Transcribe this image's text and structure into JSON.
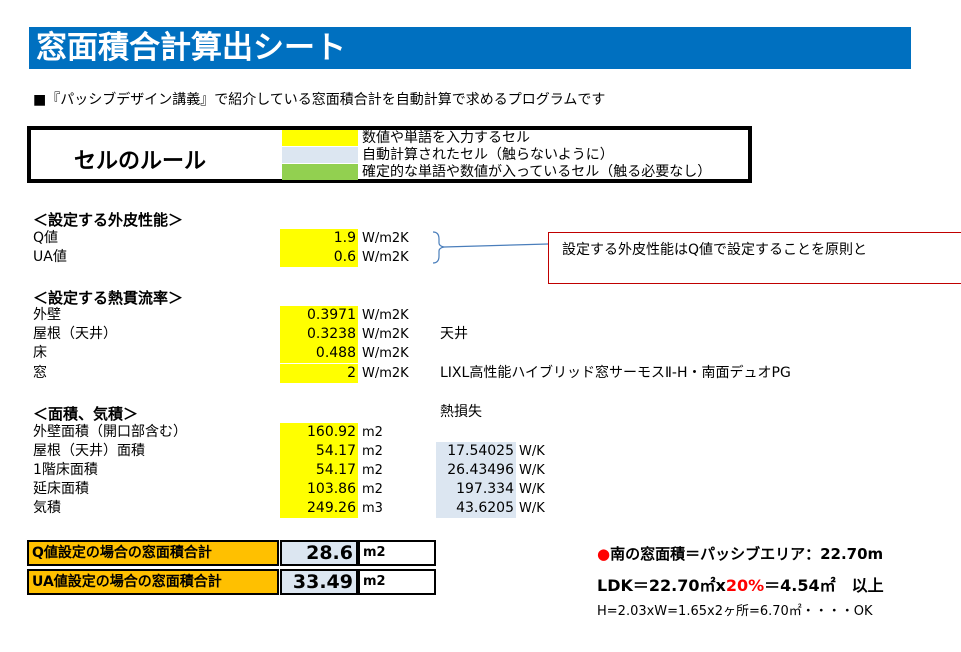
{
  "title": "窓面積合計算出シート",
  "subtitle": "■『パッシブデザイン講義』で紹介している窓面積合計を自動計算で求めるプログラムです",
  "rules": {
    "title": "セルのルール",
    "items": [
      {
        "color": "#ffff00",
        "text": "数値や単語を入力するセル"
      },
      {
        "color": "#dce6f1",
        "text": "自動計算されたセル（触らないように）"
      },
      {
        "color": "#92d050",
        "text": "確定的な単語や数値が入っているセル（触る必要なし）"
      }
    ]
  },
  "envelope": {
    "title": "＜設定する外皮性能＞",
    "rows": [
      {
        "label": "Q値",
        "value": "1.9",
        "unit": "W/m2K"
      },
      {
        "label": "UA値",
        "value": "0.6",
        "unit": "W/m2K"
      }
    ]
  },
  "callout": "設定する外皮性能はQ値で設定することを原則と",
  "transmittance": {
    "title": "＜設定する熱貫流率＞",
    "rows": [
      {
        "label": "外壁",
        "value": "0.3971",
        "unit": "W/m2K",
        "note": ""
      },
      {
        "label": "屋根（天井）",
        "value": "0.3238",
        "unit": "W/m2K",
        "note": "天井"
      },
      {
        "label": "床",
        "value": "0.488",
        "unit": "W/m2K",
        "note": ""
      },
      {
        "label": "窓",
        "value": "2",
        "unit": "W/m2K",
        "note": "LIXL高性能ハイブリッド窓サーモスⅡ-H・南面デュオPG"
      }
    ]
  },
  "areas": {
    "title": "＜面積、気積＞",
    "heat_loss_header": "熱損失",
    "rows": [
      {
        "label": "外壁面積（開口部含む）",
        "value": "160.92",
        "unit": "m2",
        "loss": "",
        "loss_unit": ""
      },
      {
        "label": "屋根（天井）面積",
        "value": "54.17",
        "unit": "m2",
        "loss": "17.54025",
        "loss_unit": "W/K"
      },
      {
        "label": "1階床面積",
        "value": "54.17",
        "unit": "m2",
        "loss": "26.43496",
        "loss_unit": "W/K"
      },
      {
        "label": "延床面積",
        "value": "103.86",
        "unit": "m2",
        "loss": "197.334",
        "loss_unit": "W/K"
      },
      {
        "label": "気積",
        "value": "249.26",
        "unit": "m3",
        "loss": "43.6205",
        "loss_unit": "W/K"
      }
    ]
  },
  "results": [
    {
      "label": "Q値設定の場合の窓面積合計",
      "value": "28.6",
      "unit": "m2"
    },
    {
      "label": "UA値設定の場合の窓面積合計",
      "value": "33.49",
      "unit": "m2"
    }
  ],
  "south": {
    "bullet": "●",
    "bullet_color": "#ff0000",
    "text": "南の窓面積＝パッシブエリア：22.70m",
    "ldk_prefix": "LDK＝22.70㎡x",
    "ldk_percent": "20%",
    "ldk_suffix": "＝4.54㎡　以上",
    "detail": "H=2.03xW=1.65x2ヶ所=6.70㎡・・・・OK"
  }
}
